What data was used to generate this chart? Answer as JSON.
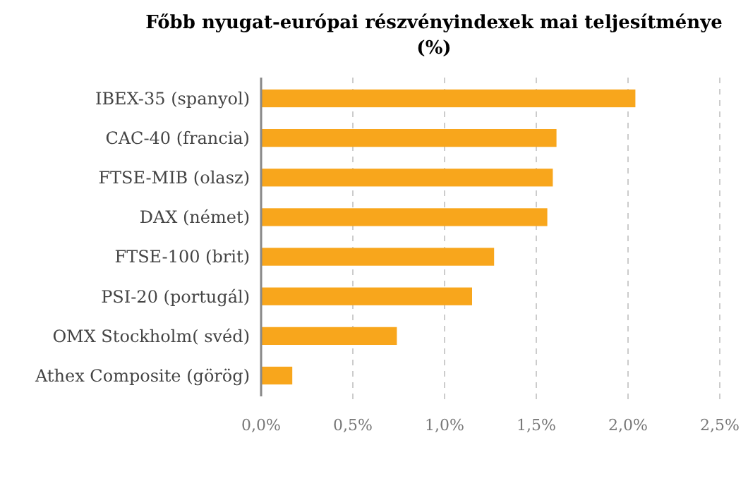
{
  "chart_data": {
    "type": "bar",
    "orientation": "horizontal",
    "title": "Főbb nyugat-európai részvényindexek mai teljesítménye (%)",
    "categories": [
      "IBEX-35 (spanyol)",
      "CAC-40 (francia)",
      "FTSE-MIB (olasz)",
      "DAX (német)",
      "FTSE-100 (brit)",
      "PSI-20 (portugál)",
      "OMX Stockholm( svéd)",
      "Athex Composite (görög)"
    ],
    "values": [
      2.04,
      1.61,
      1.59,
      1.56,
      1.27,
      1.15,
      0.74,
      0.17
    ],
    "color": "#f8a61c",
    "xlim": [
      0,
      2.5
    ],
    "xticks": [
      {
        "value": 0,
        "label": "0,0%"
      },
      {
        "value": 0.5,
        "label": "0,5%"
      },
      {
        "value": 1,
        "label": "1,0%"
      },
      {
        "value": 1.5,
        "label": "1,5%"
      },
      {
        "value": 2,
        "label": "2,0%"
      },
      {
        "value": 2.5,
        "label": "2,5%"
      }
    ],
    "grid": "x"
  }
}
